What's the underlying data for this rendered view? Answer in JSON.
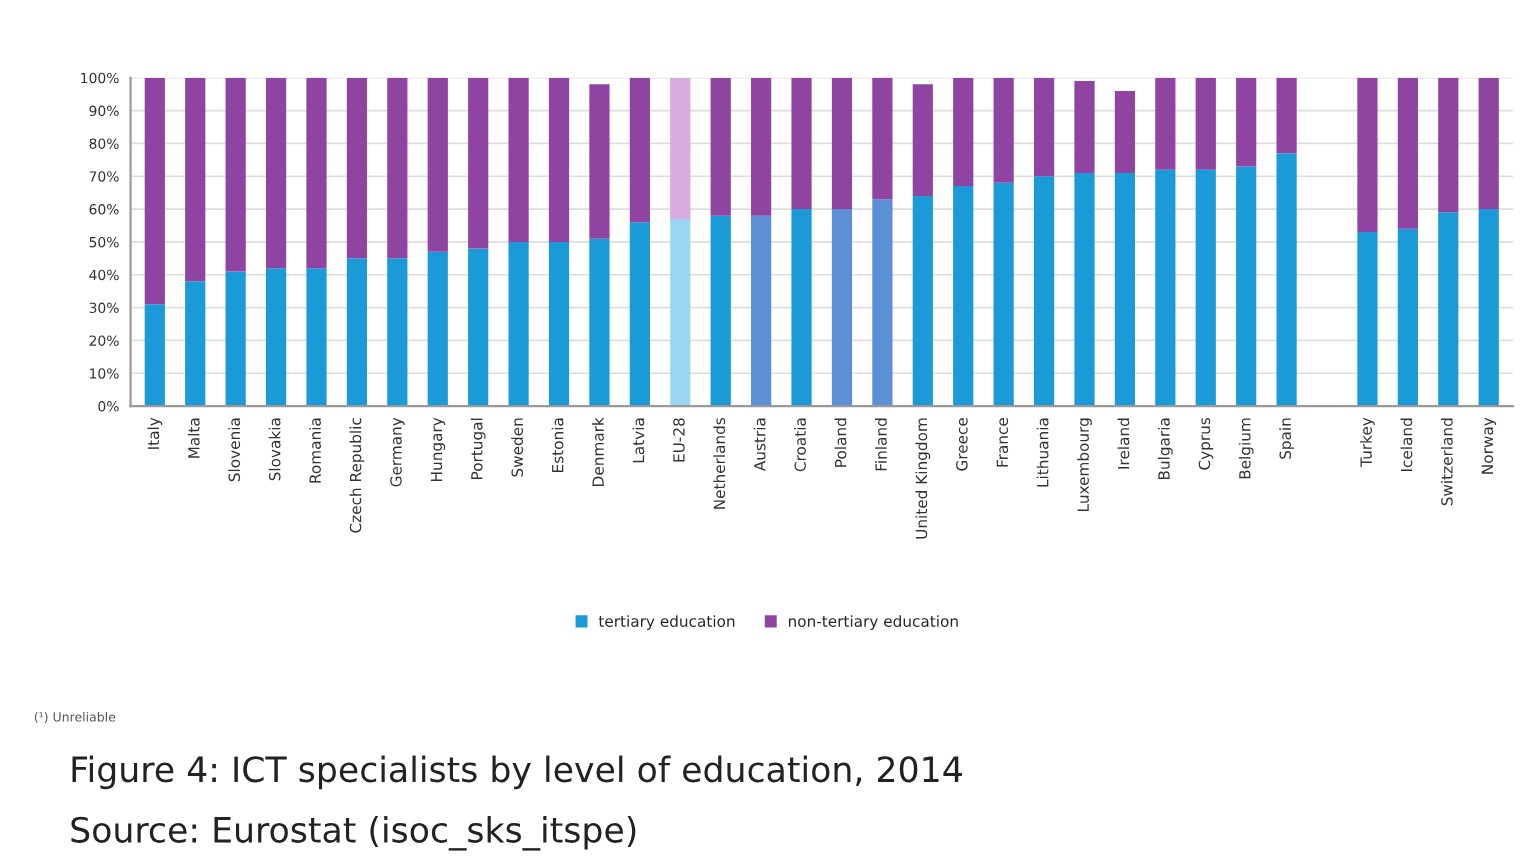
{
  "chart_data": {
    "type": "bar",
    "stacked": true,
    "title": "Figure 4: ICT specialists by level of education, 2014",
    "categories": [
      "Italy",
      "Malta",
      "Slovenia",
      "Slovakia",
      "Romania",
      "Czech Republic",
      "Germany",
      "Hungary",
      "Portugal",
      "Sweden",
      "Estonia",
      "Denmark",
      "Latvia",
      "EU-28",
      "Netherlands",
      "Austria",
      "Croatia",
      "Poland",
      "Finland",
      "United Kingdom",
      "Greece",
      "France",
      "Lithuania",
      "Luxembourg",
      "Ireland",
      "Bulgaria",
      "Cyprus",
      "Belgium",
      "Spain",
      null,
      "Turkey",
      "Iceland",
      "Switzerland",
      "Norway"
    ],
    "series": [
      {
        "name": "tertiary education",
        "color": "#1a9ad6",
        "colors": [
          "#1a9ad6",
          "#1a9ad6",
          "#1a9ad6",
          "#1a9ad6",
          "#1a9ad6",
          "#1a9ad6",
          "#1a9ad6",
          "#1a9ad6",
          "#1a9ad6",
          "#1a9ad6",
          "#1a9ad6",
          "#1a9ad6",
          "#1a9ad6",
          "#9ad6f2",
          "#1a9ad6",
          "#5b8fd6",
          "#1a9ad6",
          "#5b8fd6",
          "#5b8fd6",
          "#1a9ad6",
          "#1a9ad6",
          "#1a9ad6",
          "#1a9ad6",
          "#1a9ad6",
          "#1a9ad6",
          "#1a9ad6",
          "#1a9ad6",
          "#1a9ad6",
          "#1a9ad6",
          "#1a9ad6",
          "#1a9ad6",
          "#1a9ad6",
          "#1a9ad6",
          "#1a9ad6"
        ],
        "values": [
          31,
          38,
          41,
          42,
          42,
          45,
          45,
          47,
          48,
          50,
          50,
          51,
          56,
          57,
          58,
          58,
          60,
          60,
          63,
          64,
          67,
          68,
          70,
          71,
          71,
          72,
          72,
          73,
          77,
          null,
          53,
          54,
          59,
          60
        ]
      },
      {
        "name": "non-tertiary education",
        "color": "#8e44a0",
        "colors": [
          "#8e44a0",
          "#8e44a0",
          "#8e44a0",
          "#8e44a0",
          "#8e44a0",
          "#8e44a0",
          "#8e44a0",
          "#8e44a0",
          "#8e44a0",
          "#8e44a0",
          "#8e44a0",
          "#8e44a0",
          "#8e44a0",
          "#d9a9df",
          "#8e44a0",
          "#8e44a0",
          "#8e44a0",
          "#8e44a0",
          "#8e44a0",
          "#8e44a0",
          "#8e44a0",
          "#8e44a0",
          "#8e44a0",
          "#8e44a0",
          "#8e44a0",
          "#8e44a0",
          "#8e44a0",
          "#8e44a0",
          "#8e44a0",
          "#8e44a0",
          "#8e44a0",
          "#8e44a0",
          "#8e44a0",
          "#8e44a0"
        ],
        "values": [
          69,
          62,
          59,
          58,
          58,
          55,
          55,
          53,
          52,
          50,
          50,
          47,
          44,
          43,
          42,
          42,
          40,
          40,
          37,
          34,
          33,
          32,
          30,
          28,
          25,
          28,
          28,
          27,
          23,
          null,
          47,
          46,
          41,
          40
        ]
      }
    ],
    "ylim": [
      0,
      100
    ],
    "yticks": [
      {
        "value": 0,
        "label": "0%"
      },
      {
        "value": 10,
        "label": "10%"
      },
      {
        "value": 20,
        "label": "20%"
      },
      {
        "value": 30,
        "label": "30%"
      },
      {
        "value": 40,
        "label": "40%"
      },
      {
        "value": 50,
        "label": "50%"
      },
      {
        "value": 60,
        "label": "60%"
      },
      {
        "value": 70,
        "label": "70%"
      },
      {
        "value": 80,
        "label": "80%"
      },
      {
        "value": 90,
        "label": "90%"
      },
      {
        "value": 100,
        "label": "100%"
      }
    ],
    "grid": "y",
    "legend": "bottom",
    "annotations": [
      "(¹) Unreliable",
      "Source: Eurostat (isoc_sks_itspe)"
    ]
  }
}
